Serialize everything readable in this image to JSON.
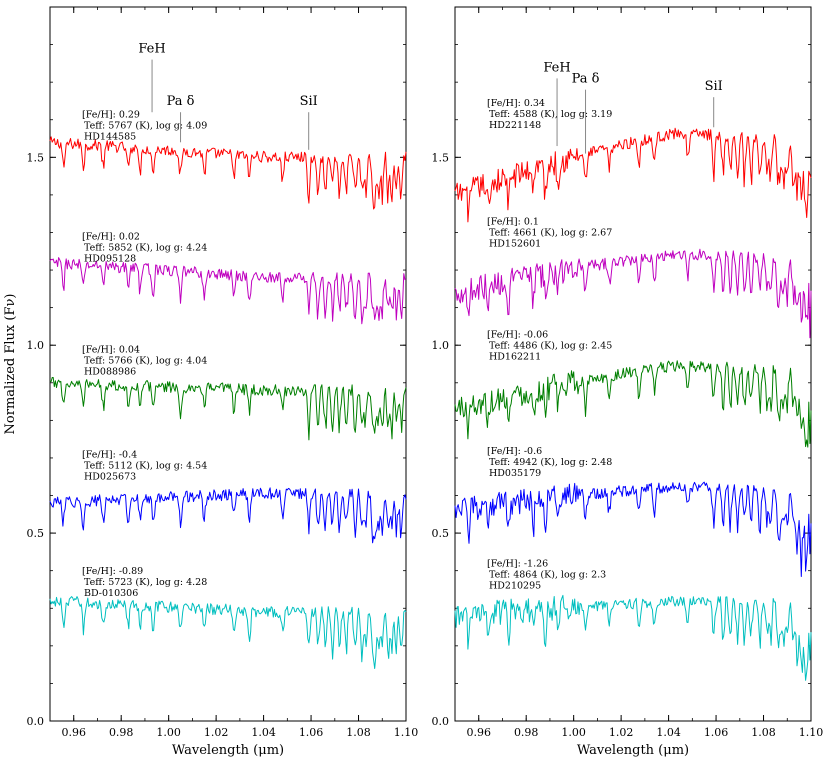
{
  "chart_data": [
    {
      "type": "line",
      "panel": "left",
      "xlabel": "Wavelength (μm)",
      "ylabel": "Normalized Flux (Fν)",
      "xlim": [
        0.95,
        1.1
      ],
      "ylim": [
        0.0,
        1.9
      ],
      "x_ticks": [
        "0.96",
        "0.98",
        "1.00",
        "1.02",
        "1.04",
        "1.06",
        "1.08",
        "1.10"
      ],
      "y_ticks": [
        "0.0",
        "0.5",
        "1.0",
        "1.5"
      ],
      "grid": false,
      "legend": "none",
      "line_markers": [
        {
          "label": "FeH",
          "x": 0.993,
          "y_bottom": 1.62,
          "y_top": 1.76
        },
        {
          "label": "Pa δ",
          "x": 1.005,
          "y_bottom": 1.54,
          "y_top": 1.62
        },
        {
          "label": "SiI",
          "x": 1.059,
          "y_bottom": 1.52,
          "y_top": 1.62
        }
      ],
      "series": [
        {
          "color": "#ff0000",
          "level": 1.5,
          "start": 1.54,
          "slope": 0.0,
          "feh": 0.29,
          "teff": 5767,
          "logg": 4.09,
          "annotations": [
            "[Fe/H]: 0.29",
            " Teff: 5767 (K), log g: 4.09",
            " HD144585"
          ]
        },
        {
          "color": "#bf00bf",
          "level": 1.18,
          "start": 1.22,
          "slope": 0.0,
          "feh": 0.02,
          "teff": 5852,
          "logg": 4.24,
          "annotations": [
            "[Fe/H]: 0.02",
            " Teff: 5852 (K), log g: 4.24",
            " HD095128"
          ]
        },
        {
          "color": "#007f00",
          "level": 0.88,
          "start": 0.9,
          "slope": 0.0,
          "feh": 0.04,
          "teff": 5766,
          "logg": 4.04,
          "annotations": [
            "[Fe/H]: 0.04",
            " Teff: 5766 (K), log g: 4.04",
            " HD088986"
          ]
        },
        {
          "color": "#0000ff",
          "level": 0.6,
          "start": 0.58,
          "slope": 0.02,
          "feh": -0.4,
          "teff": 5112,
          "logg": 4.54,
          "annotations": [
            "[Fe/H]: -0.4",
            " Teff: 5112 (K), log g: 4.54",
            " HD025673"
          ]
        },
        {
          "color": "#00bfbf",
          "level": 0.29,
          "start": 0.32,
          "slope": 0.0,
          "feh": -0.89,
          "teff": 5723,
          "logg": 4.28,
          "annotations": [
            "[Fe/H]: -0.89",
            " Teff: 5723 (K), log g: 4.28",
            " BD-010306"
          ]
        }
      ]
    },
    {
      "type": "line",
      "panel": "right",
      "xlabel": "Wavelength (μm)",
      "ylabel": "",
      "xlim": [
        0.95,
        1.1
      ],
      "ylim": [
        0.0,
        1.9
      ],
      "x_ticks": [
        "0.96",
        "0.98",
        "1.00",
        "1.02",
        "1.04",
        "1.06",
        "1.08",
        "1.10"
      ],
      "y_ticks": [
        "0.0",
        "0.5",
        "1.0",
        "1.5"
      ],
      "grid": false,
      "legend": "none",
      "line_markers": [
        {
          "label": "FeH",
          "x": 0.993,
          "y_bottom": 1.53,
          "y_top": 1.71
        },
        {
          "label": "Pa δ",
          "x": 1.005,
          "y_bottom": 1.51,
          "y_top": 1.68
        },
        {
          "label": "SiI",
          "x": 1.059,
          "y_bottom": 1.58,
          "y_top": 1.66
        }
      ],
      "series": [
        {
          "color": "#ff0000",
          "level": 1.53,
          "start": 1.4,
          "slope": 0.12,
          "feh": 0.34,
          "teff": 4588,
          "logg": 3.19,
          "annotations": [
            "[Fe/H]: 0.34",
            " Teff: 4588 (K), log g: 3.19",
            " HD221148"
          ]
        },
        {
          "color": "#bf00bf",
          "level": 1.22,
          "start": 1.14,
          "slope": 0.08,
          "feh": 0.1,
          "teff": 4661,
          "logg": 2.67,
          "annotations": [
            "[Fe/H]: 0.1",
            " Teff: 4661 (K), log g: 2.67",
            " HD152601"
          ]
        },
        {
          "color": "#007f00",
          "level": 0.92,
          "start": 0.83,
          "slope": 0.09,
          "feh": -0.06,
          "teff": 4486,
          "logg": 2.45,
          "annotations": [
            "[Fe/H]: -0.06",
            " Teff: 4486 (K), log g: 2.45",
            " HD162211"
          ]
        },
        {
          "color": "#0000ff",
          "level": 0.61,
          "start": 0.56,
          "slope": 0.05,
          "feh": -0.6,
          "teff": 4942,
          "logg": 2.48,
          "annotations": [
            "[Fe/H]: -0.6",
            " Teff: 4942 (K), log g: 2.48",
            " HD035179"
          ]
        },
        {
          "color": "#00bfbf",
          "level": 0.31,
          "start": 0.28,
          "slope": 0.03,
          "feh": -1.26,
          "teff": 4864,
          "logg": 2.3,
          "annotations": [
            "[Fe/H]: -1.26",
            " Teff: 4864 (K), log g: 2.3",
            " HD210295"
          ]
        }
      ]
    }
  ]
}
